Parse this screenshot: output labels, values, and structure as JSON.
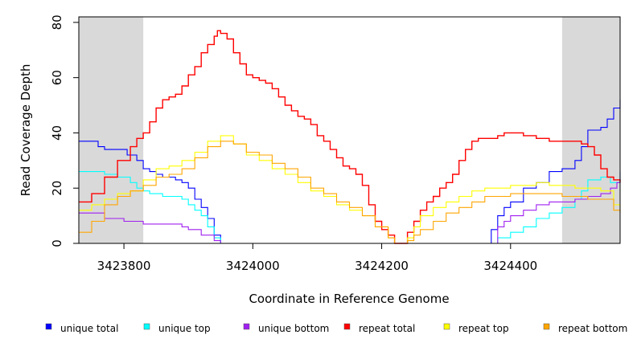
{
  "chart_data": {
    "type": "line",
    "title": "",
    "xlabel": "Coordinate in Reference Genome",
    "ylabel": "Read Coverage Depth",
    "xlim": [
      3423730,
      3424570
    ],
    "ylim": [
      0,
      82
    ],
    "x_ticks": [
      3423800,
      3424000,
      3424200,
      3424400
    ],
    "x_tick_labels": [
      "3423800",
      "3424000",
      "3424200",
      "3424400"
    ],
    "y_ticks": [
      0,
      20,
      40,
      60,
      80
    ],
    "y_tick_labels": [
      "0",
      "20",
      "40",
      "60",
      "80"
    ],
    "shaded_regions": [
      [
        3423730,
        3423830
      ],
      [
        3424480,
        3424570
      ]
    ],
    "shade_color": "#d9d9d9",
    "grid": false,
    "legend_position": "bottom",
    "series": [
      {
        "name": "unique total",
        "color": "#0000ff",
        "x": [
          3423730,
          3423750,
          3423760,
          3423770,
          3423780,
          3423800,
          3423805,
          3423810,
          3423820,
          3423830,
          3423840,
          3423850,
          3423860,
          3423870,
          3423880,
          3423890,
          3423900,
          3423910,
          3423920,
          3423930,
          3423940,
          3423950,
          3423960,
          3424000,
          3424100,
          3424200,
          3424300,
          3424360,
          3424370,
          3424380,
          3424390,
          3424400,
          3424420,
          3424440,
          3424460,
          3424480,
          3424500,
          3424510,
          3424520,
          3424540,
          3424550,
          3424560,
          3424570
        ],
        "y": [
          37,
          37,
          35,
          34,
          34,
          34,
          32,
          32,
          30,
          27,
          26,
          25,
          24,
          24,
          23,
          22,
          20,
          16,
          13,
          9,
          3,
          0,
          0,
          0,
          0,
          0,
          0,
          0,
          5,
          10,
          13,
          15,
          20,
          22,
          26,
          27,
          30,
          35,
          41,
          42,
          45,
          49,
          52
        ]
      },
      {
        "name": "unique top",
        "color": "#00ffff",
        "x": [
          3423730,
          3423750,
          3423770,
          3423790,
          3423800,
          3423810,
          3423820,
          3423830,
          3423840,
          3423860,
          3423880,
          3423890,
          3423900,
          3423910,
          3423920,
          3423930,
          3423940,
          3423950,
          3424000,
          3424100,
          3424200,
          3424300,
          3424370,
          3424380,
          3424400,
          3424420,
          3424440,
          3424460,
          3424480,
          3424500,
          3424510,
          3424520,
          3424540,
          3424555,
          3424570
        ],
        "y": [
          26,
          26,
          25,
          24,
          24,
          22,
          20,
          19,
          18,
          17,
          17,
          16,
          14,
          12,
          10,
          6,
          2,
          0,
          0,
          0,
          0,
          0,
          0,
          2,
          4,
          6,
          9,
          11,
          13,
          16,
          19,
          23,
          24,
          22,
          26
        ]
      },
      {
        "name": "unique bottom",
        "color": "#a020f0",
        "x": [
          3423730,
          3423750,
          3423770,
          3423800,
          3423830,
          3423860,
          3423890,
          3423900,
          3423920,
          3423940,
          3423950,
          3424000,
          3424100,
          3424200,
          3424300,
          3424370,
          3424380,
          3424390,
          3424400,
          3424420,
          3424440,
          3424460,
          3424480,
          3424500,
          3424520,
          3424540,
          3424555,
          3424565,
          3424570
        ],
        "y": [
          11,
          11,
          9,
          8,
          7,
          7,
          6,
          5,
          3,
          1,
          0,
          0,
          0,
          0,
          0,
          0,
          6,
          8,
          10,
          12,
          14,
          15,
          15,
          16,
          17,
          18,
          20,
          22,
          26
        ]
      },
      {
        "name": "repeat total",
        "color": "#ff0000",
        "x": [
          3423730,
          3423750,
          3423770,
          3423790,
          3423810,
          3423820,
          3423830,
          3423840,
          3423850,
          3423860,
          3423870,
          3423880,
          3423890,
          3423900,
          3423910,
          3423920,
          3423930,
          3423940,
          3423945,
          3423950,
          3423960,
          3423970,
          3423980,
          3423990,
          3424000,
          3424010,
          3424020,
          3424030,
          3424040,
          3424050,
          3424060,
          3424070,
          3424080,
          3424090,
          3424100,
          3424110,
          3424120,
          3424130,
          3424140,
          3424150,
          3424160,
          3424170,
          3424180,
          3424190,
          3424200,
          3424210,
          3424220,
          3424230,
          3424240,
          3424250,
          3424260,
          3424270,
          3424280,
          3424290,
          3424300,
          3424310,
          3424320,
          3424330,
          3424340,
          3424350,
          3424360,
          3424370,
          3424380,
          3424390,
          3424400,
          3424420,
          3424440,
          3424460,
          3424480,
          3424500,
          3424510,
          3424520,
          3424530,
          3424540,
          3424550,
          3424560,
          3424570
        ],
        "y": [
          15,
          18,
          24,
          30,
          35,
          38,
          40,
          44,
          49,
          52,
          53,
          54,
          57,
          61,
          64,
          69,
          72,
          75,
          77,
          76,
          74,
          69,
          65,
          61,
          60,
          59,
          58,
          56,
          53,
          50,
          48,
          46,
          45,
          43,
          39,
          37,
          34,
          31,
          28,
          27,
          25,
          21,
          14,
          8,
          5,
          3,
          0,
          0,
          4,
          8,
          12,
          15,
          17,
          20,
          22,
          25,
          30,
          34,
          37,
          38,
          38,
          38,
          39,
          40,
          40,
          39,
          38,
          37,
          37,
          37,
          36,
          35,
          32,
          27,
          24,
          23,
          22
        ]
      },
      {
        "name": "repeat top",
        "color": "#ffff00",
        "x": [
          3423730,
          3423750,
          3423770,
          3423790,
          3423810,
          3423830,
          3423850,
          3423870,
          3423890,
          3423910,
          3423930,
          3423950,
          3423970,
          3423990,
          3424010,
          3424030,
          3424050,
          3424070,
          3424090,
          3424110,
          3424130,
          3424150,
          3424170,
          3424190,
          3424210,
          3424220,
          3424230,
          3424240,
          3424250,
          3424260,
          3424280,
          3424300,
          3424320,
          3424340,
          3424360,
          3424380,
          3424400,
          3424420,
          3424440,
          3424460,
          3424480,
          3424500,
          3424520,
          3424540,
          3424560,
          3424570
        ],
        "y": [
          12,
          14,
          16,
          18,
          19,
          23,
          27,
          28,
          30,
          33,
          37,
          39,
          36,
          32,
          30,
          27,
          25,
          22,
          19,
          17,
          14,
          12,
          10,
          6,
          2,
          0,
          0,
          2,
          6,
          10,
          13,
          15,
          17,
          19,
          20,
          20,
          21,
          21,
          22,
          21,
          21,
          20,
          20,
          19,
          14,
          13
        ]
      },
      {
        "name": "repeat bottom",
        "color": "#ffa500",
        "x": [
          3423730,
          3423750,
          3423770,
          3423790,
          3423810,
          3423830,
          3423850,
          3423870,
          3423890,
          3423910,
          3423930,
          3423950,
          3423970,
          3423990,
          3424010,
          3424030,
          3424050,
          3424070,
          3424090,
          3424110,
          3424130,
          3424150,
          3424170,
          3424190,
          3424210,
          3424220,
          3424230,
          3424240,
          3424250,
          3424260,
          3424280,
          3424300,
          3424320,
          3424340,
          3424360,
          3424380,
          3424400,
          3424420,
          3424440,
          3424460,
          3424480,
          3424500,
          3424520,
          3424540,
          3424560,
          3424570
        ],
        "y": [
          4,
          8,
          14,
          17,
          19,
          21,
          24,
          25,
          27,
          31,
          35,
          37,
          36,
          33,
          32,
          29,
          27,
          24,
          20,
          18,
          15,
          13,
          10,
          6,
          2,
          0,
          0,
          1,
          3,
          5,
          8,
          11,
          13,
          15,
          17,
          17,
          18,
          18,
          18,
          18,
          17,
          17,
          16,
          16,
          12,
          11
        ]
      }
    ]
  }
}
